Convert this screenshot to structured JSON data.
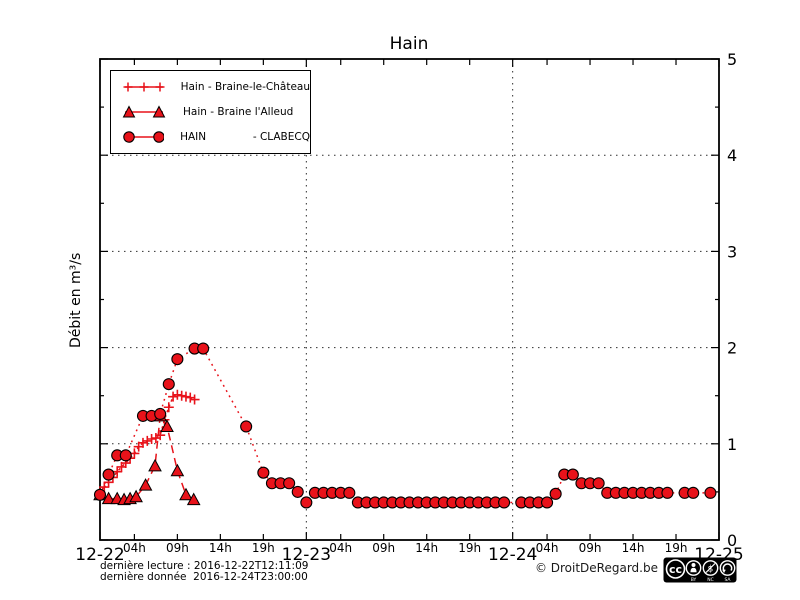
{
  "chart_data": {
    "type": "line",
    "title": "Hain",
    "ylabel": "Débit en m³/s",
    "x_unit": "hours since 2016-12-22 00:00",
    "xlim": [
      0,
      72
    ],
    "ylim": [
      0,
      5
    ],
    "grid": {
      "h_lines": [
        1,
        2,
        3,
        4
      ],
      "v_lines": [
        24,
        48
      ],
      "style": "dotted"
    },
    "x_axis": {
      "day_ticks": [
        {
          "t": 0,
          "label": "12-22"
        },
        {
          "t": 24,
          "label": "12-23"
        },
        {
          "t": 48,
          "label": "12-24"
        },
        {
          "t": 72,
          "label": "12-25"
        }
      ],
      "hour_ticks": [
        {
          "t": 4,
          "label": "04h"
        },
        {
          "t": 9,
          "label": "09h"
        },
        {
          "t": 14,
          "label": "14h"
        },
        {
          "t": 19,
          "label": "19h"
        },
        {
          "t": 28,
          "label": "04h"
        },
        {
          "t": 33,
          "label": "09h"
        },
        {
          "t": 38,
          "label": "14h"
        },
        {
          "t": 43,
          "label": "19h"
        },
        {
          "t": 52,
          "label": "04h"
        },
        {
          "t": 57,
          "label": "09h"
        },
        {
          "t": 62,
          "label": "14h"
        },
        {
          "t": 67,
          "label": "19h"
        }
      ]
    },
    "y_axis": {
      "ticks": [
        0,
        1,
        2,
        3,
        4,
        5
      ],
      "labels": [
        "0",
        "1",
        "2",
        "3",
        "4",
        "5"
      ],
      "minor_step": 0.5
    },
    "legend_position": "top-left",
    "series": [
      {
        "name": "braine-le-chateau",
        "label": "Hain - Braine-le-Château",
        "marker": "plus",
        "line": "dotted-fine",
        "color": "#e8121a",
        "points": [
          [
            0,
            0.5
          ],
          [
            0.5,
            0.55
          ],
          [
            1,
            0.6
          ],
          [
            1.5,
            0.65
          ],
          [
            2,
            0.71
          ],
          [
            2.5,
            0.76
          ],
          [
            3,
            0.8
          ],
          [
            3.5,
            0.85
          ],
          [
            4,
            0.9
          ],
          [
            4.5,
            0.97
          ],
          [
            5,
            1.01
          ],
          [
            5.5,
            1.03
          ],
          [
            6,
            1.05
          ],
          [
            6.5,
            1.06
          ],
          [
            7,
            1.09
          ],
          [
            7.5,
            1.25
          ],
          [
            8,
            1.38
          ],
          [
            8.5,
            1.49
          ],
          [
            9,
            1.51
          ],
          [
            9.5,
            1.5
          ],
          [
            10,
            1.49
          ],
          [
            10.5,
            1.48
          ],
          [
            11,
            1.46
          ]
        ]
      },
      {
        "name": "braine-l-alleud",
        "label": "Hain - Braine l'Alleud",
        "marker": "triangle",
        "line": "dashed",
        "color": "#e8121a",
        "points": [
          [
            0,
            0.47
          ],
          [
            1,
            0.43
          ],
          [
            2,
            0.43
          ],
          [
            2.8,
            0.42
          ],
          [
            3.5,
            0.43
          ],
          [
            4.2,
            0.45
          ],
          [
            5.3,
            0.57
          ],
          [
            6.4,
            0.77
          ],
          [
            7,
            1.29
          ],
          [
            7.8,
            1.18
          ],
          [
            9,
            0.72
          ],
          [
            10,
            0.47
          ],
          [
            10.9,
            0.42
          ]
        ]
      },
      {
        "name": "clabecq",
        "label": "HAIN              - CLABECQ",
        "marker": "circle",
        "line": "dotted",
        "color": "#e8121a",
        "points": [
          [
            0,
            0.47
          ],
          [
            1,
            0.68
          ],
          [
            2,
            0.88
          ],
          [
            3,
            0.88
          ],
          [
            5,
            1.29
          ],
          [
            6,
            1.29
          ],
          [
            7,
            1.31
          ],
          [
            8,
            1.62
          ],
          [
            9,
            1.88
          ],
          [
            11,
            1.99
          ],
          [
            12,
            1.99
          ],
          [
            17,
            1.18
          ],
          [
            19,
            0.7
          ],
          [
            20,
            0.59
          ],
          [
            21,
            0.59
          ],
          [
            22,
            0.59
          ],
          [
            23,
            0.5
          ],
          [
            24,
            0.39
          ],
          [
            25,
            0.49
          ],
          [
            26,
            0.49
          ],
          [
            27,
            0.49
          ],
          [
            28,
            0.49
          ],
          [
            29,
            0.49
          ],
          [
            30,
            0.39
          ],
          [
            31,
            0.39
          ],
          [
            32,
            0.39
          ],
          [
            33,
            0.39
          ],
          [
            34,
            0.39
          ],
          [
            35,
            0.39
          ],
          [
            36,
            0.39
          ],
          [
            37,
            0.39
          ],
          [
            38,
            0.39
          ],
          [
            39,
            0.39
          ],
          [
            40,
            0.39
          ],
          [
            41,
            0.39
          ],
          [
            42,
            0.39
          ],
          [
            43,
            0.39
          ],
          [
            44,
            0.39
          ],
          [
            45,
            0.39
          ],
          [
            46,
            0.39
          ],
          [
            47,
            0.39
          ],
          [
            49,
            0.39
          ],
          [
            50,
            0.39
          ],
          [
            51,
            0.39
          ],
          [
            52,
            0.39
          ],
          [
            53,
            0.48
          ],
          [
            54,
            0.68
          ],
          [
            55,
            0.68
          ],
          [
            56,
            0.59
          ],
          [
            57,
            0.59
          ],
          [
            58,
            0.59
          ],
          [
            59,
            0.49
          ],
          [
            60,
            0.49
          ],
          [
            61,
            0.49
          ],
          [
            62,
            0.49
          ],
          [
            63,
            0.49
          ],
          [
            64,
            0.49
          ],
          [
            65,
            0.49
          ],
          [
            66,
            0.49
          ],
          [
            68,
            0.49
          ],
          [
            69,
            0.49
          ],
          [
            71,
            0.49
          ]
        ]
      }
    ]
  },
  "footer": {
    "last_reading": "dernière lecture : 2016-12-22T12:11:09",
    "last_data": "dernière donnée  2016-12-24T23:00:00",
    "copyright": "© DroitDeRegard.be"
  },
  "license": {
    "cc_label": "cc",
    "badges": [
      "BY",
      "NC",
      "SA"
    ],
    "dollar": "$"
  },
  "colors": {
    "series_red": "#e8121a",
    "frame": "#000000",
    "grid": "#2e2e2e"
  }
}
